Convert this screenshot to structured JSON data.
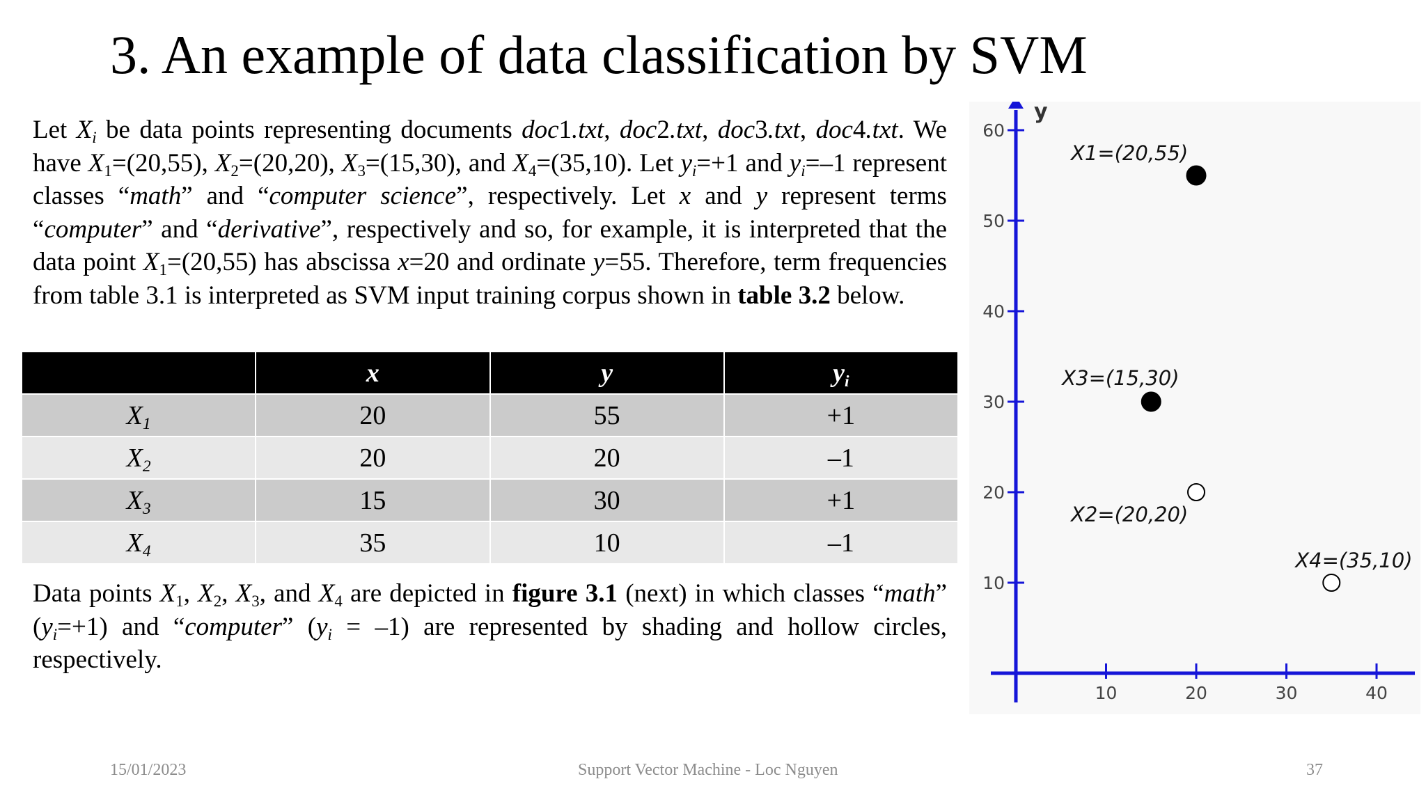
{
  "slide": {
    "title": "3. An example of data classification by SVM",
    "footer": {
      "date": "15/01/2023",
      "center": "Support Vector Machine - Loc Nguyen",
      "page": "37"
    }
  },
  "table": {
    "headers": [
      "",
      "x",
      "y",
      "y_i"
    ],
    "rows": [
      {
        "name": "X1",
        "x": "20",
        "y": "55",
        "yi": "+1"
      },
      {
        "name": "X2",
        "x": "20",
        "y": "20",
        "yi": "–1"
      },
      {
        "name": "X3",
        "x": "15",
        "y": "30",
        "yi": "+1"
      },
      {
        "name": "X4",
        "x": "35",
        "y": "10",
        "yi": "–1"
      }
    ]
  },
  "chart_data": {
    "type": "scatter",
    "xlabel": "",
    "ylabel": "y",
    "xlim": [
      0,
      44
    ],
    "ylim": [
      0,
      63
    ],
    "x_ticks": [
      10,
      20,
      30,
      40
    ],
    "y_ticks": [
      10,
      20,
      30,
      40,
      50,
      60
    ],
    "grid": false,
    "points": [
      {
        "label": "X1=(20,55)",
        "x": 20,
        "y": 55,
        "class": "+1",
        "style": "filled"
      },
      {
        "label": "X2=(20,20)",
        "x": 20,
        "y": 20,
        "class": "-1",
        "style": "hollow"
      },
      {
        "label": "X3=(15,30)",
        "x": 15,
        "y": 30,
        "class": "+1",
        "style": "filled"
      },
      {
        "label": "X4=(35,10)",
        "x": 35,
        "y": 10,
        "class": "-1",
        "style": "hollow"
      }
    ],
    "colors": {
      "axis": "#1515d8",
      "point": "#000000",
      "label": "#111111"
    }
  }
}
